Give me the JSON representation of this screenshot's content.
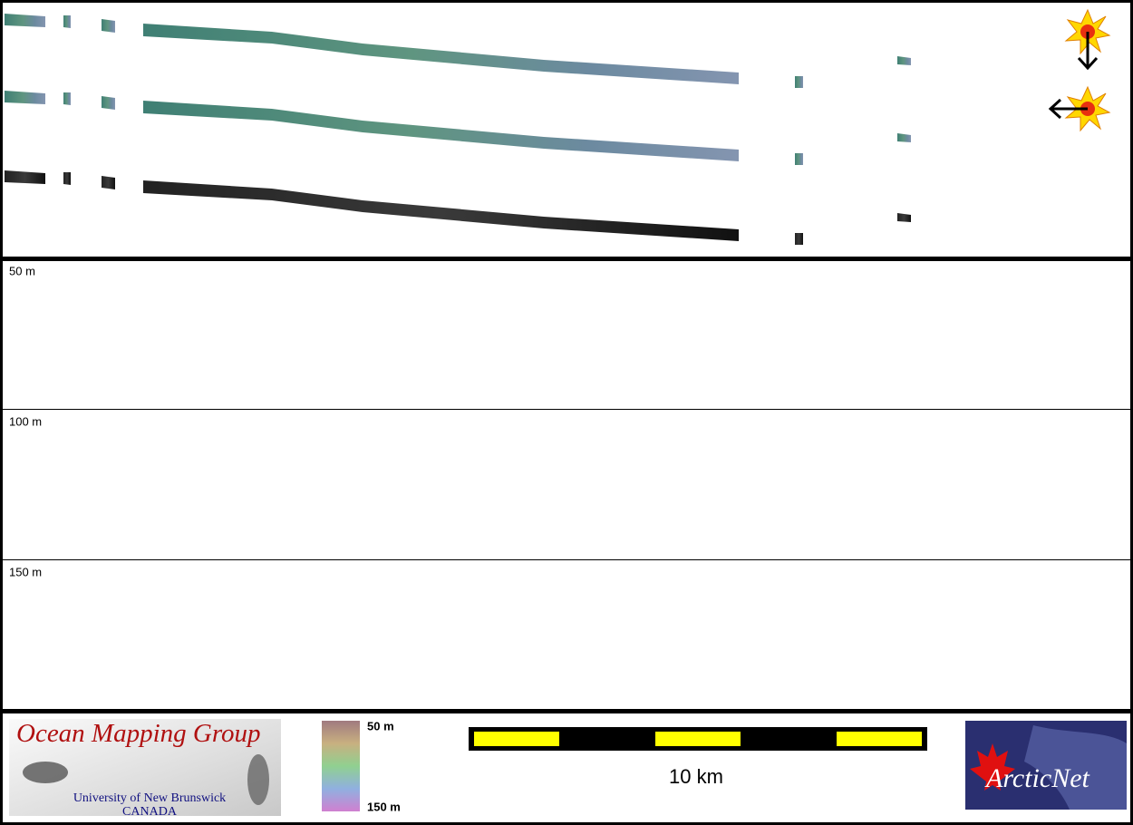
{
  "profile": {
    "depth_labels": [
      "50 m",
      "100 m",
      "150 m"
    ]
  },
  "footer": {
    "logo": {
      "title": "Ocean Mapping Group",
      "university": "University of New Brunswick",
      "country": "CANADA"
    },
    "colorbar": {
      "top_label": "50 m",
      "bottom_label": "150 m"
    },
    "scale": {
      "label": "10 km"
    },
    "partner": {
      "name": "ArcticNet"
    }
  }
}
